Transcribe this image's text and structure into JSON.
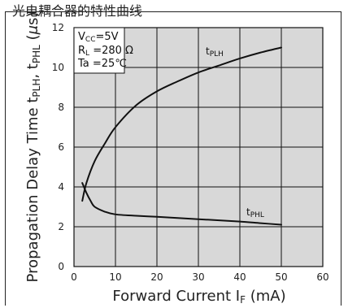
{
  "header": {
    "top_text": "光电耦合器的特性曲线"
  },
  "chart_data": {
    "type": "line",
    "title": "",
    "xlabel": "Forward Current   I_F (mA)",
    "ylabel": "Propagation Delay Time t_PLH, t_PHL (μs)",
    "xlim": [
      0,
      60
    ],
    "ylim": [
      0,
      12
    ],
    "xticks": [
      0,
      10,
      20,
      30,
      40,
      50,
      60
    ],
    "yticks": [
      0,
      2,
      4,
      6,
      8,
      10,
      12
    ],
    "grid": true,
    "conditions": [
      "V_CC=5V",
      "R_L=280 Ω",
      "Ta=25℃"
    ],
    "series": [
      {
        "name": "t_PLH",
        "x": [
          2,
          3,
          5,
          7.5,
          10,
          15,
          20,
          25,
          30,
          35,
          40,
          45,
          50
        ],
        "y": [
          3.3,
          4.2,
          5.3,
          6.2,
          7.0,
          8.1,
          8.8,
          9.3,
          9.75,
          10.1,
          10.45,
          10.75,
          11.0
        ]
      },
      {
        "name": "t_PHL",
        "x": [
          2,
          3,
          4,
          5,
          7.5,
          10,
          15,
          20,
          25,
          30,
          35,
          40,
          45,
          50
        ],
        "y": [
          4.2,
          3.7,
          3.3,
          3.0,
          2.75,
          2.62,
          2.55,
          2.5,
          2.44,
          2.38,
          2.32,
          2.26,
          2.18,
          2.1
        ]
      }
    ]
  }
}
